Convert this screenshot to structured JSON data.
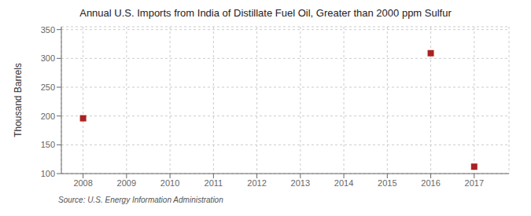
{
  "chart_data": {
    "type": "scatter",
    "title": "Annual U.S. Imports from India of Distillate Fuel Oil, Greater than 2000 ppm Sulfur",
    "ylabel": "Thousand Barrels",
    "x": [
      2008,
      2016,
      2017
    ],
    "values": [
      196,
      309,
      112
    ],
    "color": "#aa2222",
    "marker": "square",
    "xlim": [
      2007.5,
      2017.8
    ],
    "xticks": [
      2008,
      2009,
      2010,
      2011,
      2012,
      2013,
      2014,
      2015,
      2016,
      2017
    ],
    "ylim": [
      100,
      355
    ],
    "yticks": [
      100,
      150,
      200,
      250,
      300,
      350
    ],
    "grid": true,
    "annotations": [
      "Source: U.S. Energy Information Administration"
    ]
  }
}
